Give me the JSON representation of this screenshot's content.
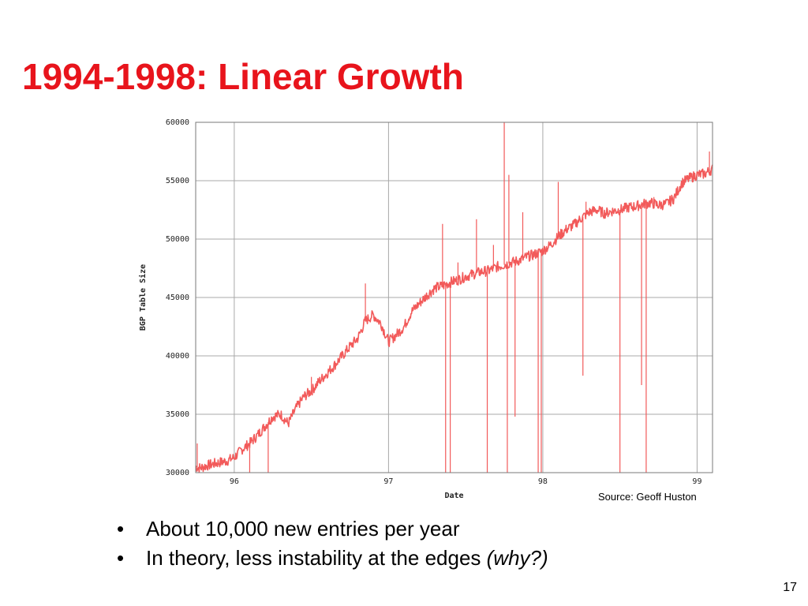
{
  "slide": {
    "title": "1994-1998: Linear Growth",
    "source": "Source: Geoff Huston",
    "bullets": [
      {
        "bullet": "•",
        "text": "About 10,000 new entries per year",
        "emphasis": ""
      },
      {
        "bullet": "•",
        "text": "In theory, less instability at the edges ",
        "emphasis": "(why?)"
      }
    ],
    "page_number": "17"
  },
  "colors": {
    "title": "#e8141c",
    "series": "#f25a5a",
    "grid": "#a8a8a8"
  },
  "chart_data": {
    "type": "line",
    "title": "",
    "xlabel": "Date",
    "ylabel": "BGP Table Size",
    "xlim": [
      95.75,
      99.1
    ],
    "ylim": [
      30000,
      60000
    ],
    "x_ticks": [
      96,
      97,
      98,
      99
    ],
    "x_tick_labels": [
      "96",
      "97",
      "98",
      "99"
    ],
    "y_ticks": [
      30000,
      35000,
      40000,
      45000,
      50000,
      55000,
      60000
    ],
    "y_tick_labels": [
      "30000",
      "35000",
      "40000",
      "45000",
      "50000",
      "55000",
      "60000"
    ],
    "grid": true,
    "legend": "none",
    "series": [
      {
        "x": [
          95.75,
          95.78,
          95.82,
          95.88,
          95.95,
          96.0,
          96.05,
          96.1,
          96.15,
          96.2,
          96.25,
          96.3,
          96.35,
          96.4,
          96.45,
          96.5,
          96.55,
          96.6,
          96.65,
          96.7,
          96.75,
          96.8,
          96.85,
          96.9,
          96.95,
          97.0,
          97.05,
          97.1,
          97.15,
          97.2,
          97.25,
          97.3,
          97.35,
          97.4,
          97.45,
          97.5,
          97.55,
          97.6,
          97.65,
          97.7,
          97.75,
          97.8,
          97.85,
          97.9,
          97.95,
          98.0,
          98.05,
          98.1,
          98.15,
          98.2,
          98.25,
          98.3,
          98.35,
          98.4,
          98.45,
          98.5,
          98.55,
          98.6,
          98.65,
          98.7,
          98.75,
          98.8,
          98.85,
          98.9,
          98.95,
          99.0,
          99.05,
          99.1
        ],
        "y": [
          30500,
          30400,
          30600,
          30800,
          31000,
          31300,
          32000,
          32500,
          33200,
          34000,
          34800,
          35000,
          34200,
          35500,
          36500,
          37000,
          37800,
          38500,
          39200,
          40000,
          40800,
          41500,
          43000,
          43500,
          42800,
          41200,
          41800,
          42500,
          43800,
          44500,
          45200,
          45800,
          46000,
          46300,
          46500,
          46800,
          47000,
          47200,
          47300,
          47600,
          47800,
          48000,
          48200,
          48500,
          48700,
          49000,
          49500,
          50200,
          50800,
          51200,
          51800,
          52300,
          52500,
          52200,
          52400,
          52500,
          52700,
          52800,
          53000,
          53100,
          52900,
          53000,
          53500,
          54800,
          55200,
          55500,
          55600,
          56000
        ]
      }
    ],
    "spikes": [
      {
        "x": 95.76,
        "y": 32500
      },
      {
        "x": 96.1,
        "y": 30000
      },
      {
        "x": 96.22,
        "y": 30000
      },
      {
        "x": 96.5,
        "y": 38200
      },
      {
        "x": 96.85,
        "y": 46200
      },
      {
        "x": 97.35,
        "y": 51300
      },
      {
        "x": 97.37,
        "y": 30000
      },
      {
        "x": 97.4,
        "y": 30000
      },
      {
        "x": 97.45,
        "y": 48000
      },
      {
        "x": 97.57,
        "y": 51700
      },
      {
        "x": 97.64,
        "y": 30000
      },
      {
        "x": 97.68,
        "y": 49500
      },
      {
        "x": 97.75,
        "y": 60000
      },
      {
        "x": 97.77,
        "y": 30000
      },
      {
        "x": 97.78,
        "y": 55500
      },
      {
        "x": 97.82,
        "y": 34800
      },
      {
        "x": 97.87,
        "y": 52300
      },
      {
        "x": 97.97,
        "y": 30000
      },
      {
        "x": 97.99,
        "y": 30000
      },
      {
        "x": 98.1,
        "y": 54900
      },
      {
        "x": 98.26,
        "y": 38300
      },
      {
        "x": 98.28,
        "y": 53200
      },
      {
        "x": 98.5,
        "y": 30000
      },
      {
        "x": 98.64,
        "y": 37500
      },
      {
        "x": 98.67,
        "y": 30000
      },
      {
        "x": 98.72,
        "y": 53600
      },
      {
        "x": 99.08,
        "y": 57500
      }
    ]
  }
}
